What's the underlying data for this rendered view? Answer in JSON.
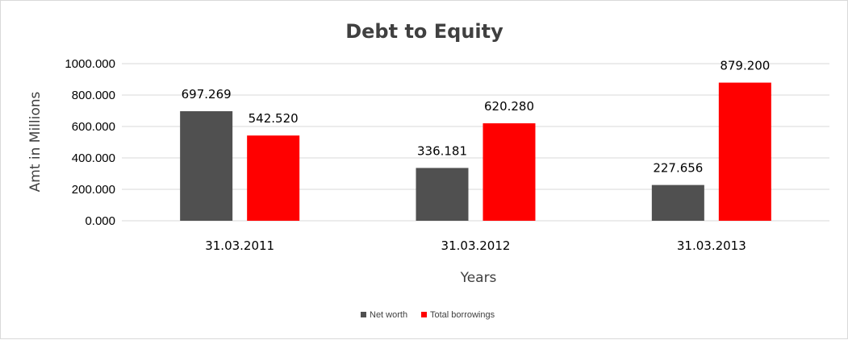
{
  "chart_data": {
    "type": "bar",
    "title": "Debt to Equity",
    "xlabel": "Years",
    "ylabel": "Amt in Millions",
    "categories": [
      "31.03.2011",
      "31.03.2012",
      "31.03.2013"
    ],
    "series": [
      {
        "name": "Net worth",
        "values": [
          697.269,
          336.181,
          227.656
        ],
        "color": "#505050"
      },
      {
        "name": "Total borrowings",
        "values": [
          542.52,
          620.28,
          879.2
        ],
        "color": "#ff0000"
      }
    ],
    "ylim": [
      0,
      1000
    ],
    "yticks": [
      "0.000",
      "200.000",
      "400.000",
      "600.000",
      "800.000",
      "1000.000"
    ],
    "data_labels": [
      [
        "697.269",
        "336.181",
        "227.656"
      ],
      [
        "542.520",
        "620.280",
        "879.200"
      ]
    ],
    "grid": true,
    "legend_position": "bottom"
  }
}
